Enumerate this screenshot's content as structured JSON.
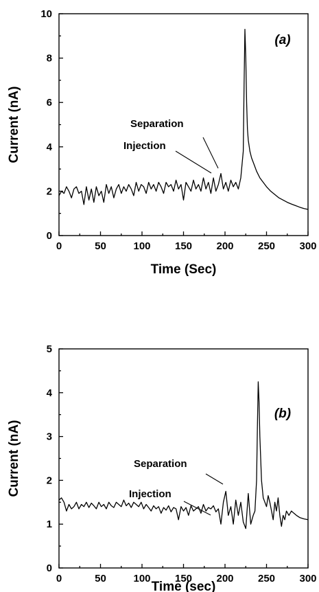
{
  "chart_data": [
    {
      "type": "line",
      "panel_label": "(a)",
      "xlabel": "Time (Sec)",
      "ylabel": "Current (nA)",
      "xlim": [
        0,
        300
      ],
      "ylim": [
        0,
        10
      ],
      "xticks": [
        0,
        50,
        100,
        150,
        200,
        250,
        300
      ],
      "yticks": [
        0,
        2,
        4,
        6,
        8,
        10
      ],
      "grid": false,
      "annotations": [
        {
          "text": "Separation",
          "x": 190,
          "y": 2.8
        },
        {
          "text": "Injection",
          "x": 182,
          "y": 2.4
        }
      ],
      "series": [
        {
          "x": [
            0,
            3,
            6,
            9,
            12,
            15,
            18,
            21,
            24,
            27,
            30,
            33,
            36,
            39,
            42,
            45,
            48,
            51,
            54,
            57,
            60,
            63,
            66,
            69,
            72,
            75,
            78,
            81,
            84,
            87,
            90,
            93,
            96,
            99,
            102,
            105,
            108,
            111,
            114,
            117,
            120,
            123,
            126,
            129,
            132,
            135,
            138,
            141,
            144,
            147,
            150,
            153,
            156,
            159,
            162,
            165,
            168,
            171,
            174,
            177,
            180,
            183,
            186,
            189,
            192,
            195,
            198,
            201,
            204,
            207,
            210,
            213,
            216,
            219,
            222,
            223,
            224,
            225,
            226,
            227,
            228,
            230,
            232,
            235,
            238,
            242,
            246,
            250,
            255,
            260,
            265,
            270,
            275,
            280,
            285,
            290,
            295,
            300
          ],
          "y": [
            1.8,
            2.0,
            1.9,
            2.2,
            2.0,
            1.7,
            2.1,
            2.2,
            1.9,
            2.0,
            1.4,
            2.2,
            1.6,
            2.1,
            1.5,
            2.2,
            1.8,
            2.0,
            1.5,
            2.3,
            1.9,
            2.2,
            1.7,
            2.1,
            2.3,
            1.9,
            2.2,
            2.0,
            2.3,
            2.1,
            1.8,
            2.4,
            2.0,
            2.3,
            2.2,
            1.9,
            2.4,
            2.1,
            2.3,
            2.0,
            2.4,
            2.2,
            1.9,
            2.4,
            2.2,
            2.3,
            2.0,
            2.5,
            2.1,
            2.3,
            1.6,
            2.4,
            2.2,
            2.0,
            2.5,
            2.1,
            2.3,
            2.0,
            2.6,
            2.1,
            2.4,
            1.9,
            2.6,
            2.0,
            2.3,
            2.8,
            2.1,
            2.4,
            2.0,
            2.5,
            2.2,
            2.4,
            2.1,
            2.6,
            3.8,
            6.8,
            9.3,
            8.0,
            6.0,
            4.8,
            4.3,
            3.8,
            3.5,
            3.2,
            2.9,
            2.6,
            2.4,
            2.2,
            2.0,
            1.85,
            1.7,
            1.6,
            1.5,
            1.42,
            1.35,
            1.28,
            1.22,
            1.18
          ]
        }
      ]
    },
    {
      "type": "line",
      "panel_label": "(b)",
      "xlabel": "Time (sec)",
      "ylabel": "Current (nA)",
      "xlim": [
        0,
        300
      ],
      "ylim": [
        0,
        5
      ],
      "xticks": [
        0,
        50,
        100,
        150,
        200,
        250,
        300
      ],
      "yticks": [
        0,
        1,
        2,
        3,
        4,
        5
      ],
      "grid": false,
      "annotations": [
        {
          "text": "Separation",
          "x": 200,
          "y": 1.7
        },
        {
          "text": "Injection",
          "x": 185,
          "y": 1.4
        }
      ],
      "series": [
        {
          "x": [
            0,
            3,
            6,
            9,
            12,
            15,
            18,
            21,
            24,
            27,
            30,
            33,
            36,
            39,
            42,
            45,
            48,
            51,
            54,
            57,
            60,
            63,
            66,
            69,
            72,
            75,
            78,
            81,
            84,
            87,
            90,
            93,
            96,
            99,
            102,
            105,
            108,
            111,
            114,
            117,
            120,
            123,
            126,
            129,
            132,
            135,
            138,
            141,
            144,
            147,
            150,
            153,
            156,
            159,
            162,
            165,
            168,
            171,
            174,
            177,
            180,
            183,
            186,
            189,
            192,
            195,
            198,
            201,
            204,
            207,
            210,
            213,
            216,
            219,
            222,
            225,
            228,
            231,
            234,
            236,
            238,
            239,
            240,
            241,
            242,
            244,
            246,
            248,
            250,
            252,
            254,
            256,
            258,
            260,
            262,
            264,
            266,
            268,
            270,
            272,
            274,
            277,
            280,
            283,
            286,
            290,
            295,
            300
          ],
          "y": [
            1.55,
            1.6,
            1.5,
            1.3,
            1.45,
            1.35,
            1.4,
            1.5,
            1.35,
            1.45,
            1.4,
            1.5,
            1.38,
            1.48,
            1.42,
            1.35,
            1.5,
            1.4,
            1.45,
            1.35,
            1.5,
            1.42,
            1.38,
            1.5,
            1.45,
            1.4,
            1.55,
            1.42,
            1.48,
            1.38,
            1.5,
            1.45,
            1.4,
            1.5,
            1.35,
            1.45,
            1.38,
            1.3,
            1.42,
            1.35,
            1.4,
            1.25,
            1.38,
            1.32,
            1.42,
            1.28,
            1.38,
            1.35,
            1.1,
            1.4,
            1.3,
            1.38,
            1.2,
            1.42,
            1.3,
            1.35,
            1.4,
            1.25,
            1.45,
            1.3,
            1.38,
            1.35,
            1.42,
            1.28,
            1.35,
            1.0,
            1.5,
            1.75,
            1.2,
            1.4,
            1.0,
            1.55,
            1.2,
            1.5,
            1.05,
            0.9,
            1.7,
            1.0,
            1.2,
            1.3,
            2.0,
            3.2,
            4.25,
            3.8,
            3.0,
            2.0,
            1.6,
            1.5,
            1.4,
            1.65,
            1.5,
            1.3,
            1.1,
            1.5,
            1.3,
            1.6,
            1.2,
            0.95,
            1.2,
            1.1,
            1.3,
            1.2,
            1.3,
            1.25,
            1.2,
            1.15,
            1.12,
            1.1
          ]
        }
      ]
    }
  ]
}
